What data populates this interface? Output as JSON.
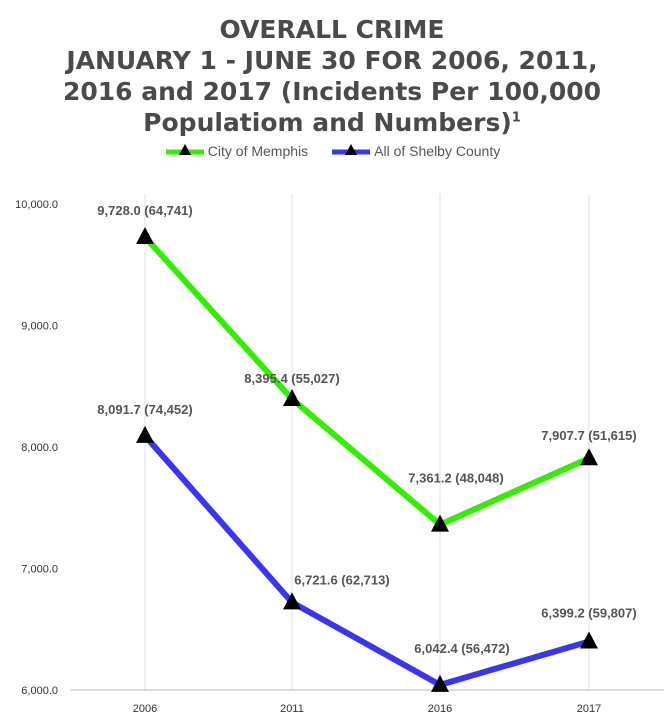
{
  "title_lines": [
    "OVERALL CRIME",
    "JANUARY 1 - JUNE 30 FOR 2006, 2011,",
    "2016 and 2017 (Incidents Per 100,000",
    "Populatiom and Numbers)"
  ],
  "title_superscript": "1",
  "chart_data": {
    "type": "line",
    "categories": [
      "2006",
      "2011",
      "2016",
      "2017"
    ],
    "ylim": [
      6000,
      10000
    ],
    "yticks": [
      6000,
      7000,
      8000,
      9000,
      10000
    ],
    "ytick_labels": [
      "6,000.0",
      "7,000.0",
      "8,000.0",
      "9,000.0",
      "10,000.0"
    ],
    "grid": "vertical",
    "legend_position": "top-center",
    "marker": "triangle",
    "series": [
      {
        "name": "City of Memphis",
        "color": "#33ee00",
        "values": [
          9728.0,
          8395.4,
          7361.2,
          7907.7
        ],
        "labels": [
          "9,728.0 (64,741)",
          "8,395.4 (55,027)",
          "7,361.2 (48,048)",
          "7,907.7 (51,615)"
        ]
      },
      {
        "name": "All of Shelby County",
        "color": "#3a35f0",
        "values": [
          8091.7,
          6721.6,
          6042.4,
          6399.2
        ],
        "labels": [
          "8,091.7 (74,452)",
          "6,721.6 (62,713)",
          "6,042.4 (56,472)",
          "6,399.2 (59,807)"
        ]
      }
    ]
  }
}
